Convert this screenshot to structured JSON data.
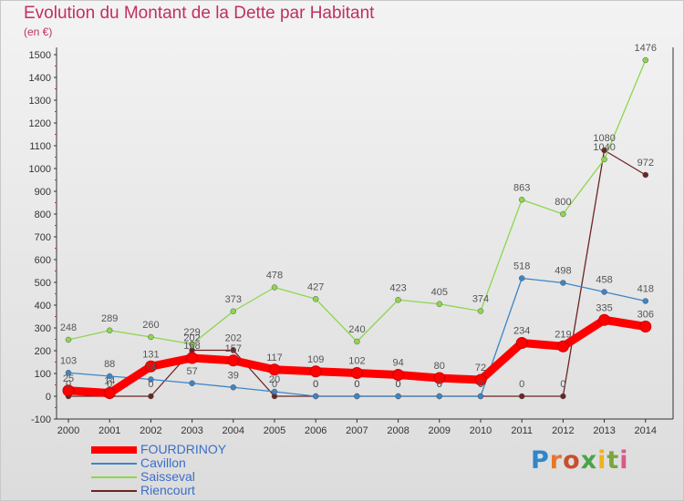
{
  "header": {
    "title": "Evolution du Montant de la Dette par Habitant",
    "subtitle": "(en €)"
  },
  "logo": {
    "letters": [
      "P",
      "r",
      "o",
      "x",
      "i",
      "t",
      "i"
    ]
  },
  "chart_data": {
    "type": "line",
    "title": "Evolution du Montant de la Dette par Habitant",
    "subtitle": "(en €)",
    "xlabel": "",
    "ylabel": "",
    "x": [
      "2000",
      "2001",
      "2002",
      "2003",
      "2004",
      "2005",
      "2006",
      "2007",
      "2008",
      "2009",
      "2010",
      "2011",
      "2012",
      "2013",
      "2014"
    ],
    "yticks": [
      "-100",
      "0",
      "100",
      "200",
      "300",
      "400",
      "500",
      "600",
      "700",
      "800",
      "900",
      "1000",
      "1100",
      "1200",
      "1300",
      "1400",
      "1500"
    ],
    "ylim": [
      -100,
      1500
    ],
    "grid": false,
    "legend_position": "bottom-left",
    "series": [
      {
        "name": "FOURDRINOY",
        "color": "#ff0000",
        "values": [
          25,
          14,
          131,
          168,
          157,
          117,
          109,
          102,
          94,
          80,
          72,
          234,
          219,
          335,
          306
        ]
      },
      {
        "name": "Cavillon",
        "color": "#3d85c6",
        "values": [
          103,
          88,
          74,
          57,
          39,
          20,
          0,
          0,
          0,
          0,
          0,
          518,
          498,
          458,
          418
        ]
      },
      {
        "name": "Saisseval",
        "color": "#8ed64d",
        "values": [
          248,
          289,
          260,
          229,
          373,
          478,
          427,
          240,
          423,
          405,
          374,
          863,
          800,
          1040,
          1476
        ]
      },
      {
        "name": "Riencourt",
        "color": "#6b2424",
        "values": [
          0,
          0,
          0,
          202,
          202,
          0,
          0,
          0,
          0,
          0,
          0,
          0,
          0,
          1080,
          972
        ]
      }
    ]
  }
}
